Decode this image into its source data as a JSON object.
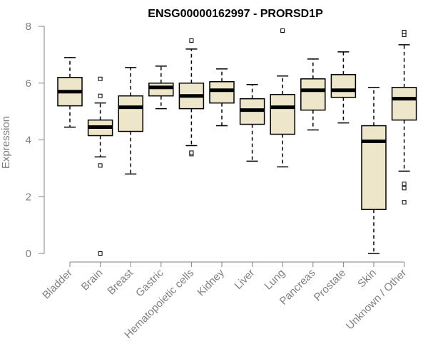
{
  "chart_data": {
    "type": "box",
    "title": "ENSG00000162997 - PRORSD1P",
    "xlabel": "",
    "ylabel": "Expression",
    "ylim": [
      0,
      8
    ],
    "yticks": [
      0,
      2,
      4,
      6,
      8
    ],
    "grid": false,
    "box_fill": "#ede6cb",
    "median_color": "#000000",
    "axis_color": "#808080",
    "categories": [
      "Bladder",
      "Brain",
      "Breast",
      "Gastric",
      "Hematopoietic cells",
      "Kidney",
      "Liver",
      "Lung",
      "Pancreas",
      "Prostate",
      "Skin",
      "Unknown / Other"
    ],
    "tick_labels": [
      "Bladder",
      "Brain",
      "Breast",
      "Gastric",
      "Hematopoietic cells",
      "Kidney",
      "Liver",
      "Lung",
      "Pancreas",
      "Prostate",
      "Skin",
      "Unknown / Other"
    ],
    "boxes": [
      {
        "whisker_low": 4.45,
        "q1": 5.2,
        "median": 5.7,
        "q3": 6.2,
        "whisker_high": 6.9,
        "outliers": []
      },
      {
        "whisker_low": 3.4,
        "q1": 4.15,
        "median": 4.45,
        "q3": 4.7,
        "whisker_high": 5.3,
        "outliers": [
          0.0,
          3.1,
          5.55,
          6.15
        ]
      },
      {
        "whisker_low": 2.8,
        "q1": 4.3,
        "median": 5.15,
        "q3": 5.55,
        "whisker_high": 6.55,
        "outliers": []
      },
      {
        "whisker_low": 5.1,
        "q1": 5.55,
        "median": 5.85,
        "q3": 6.0,
        "whisker_high": 6.6,
        "outliers": []
      },
      {
        "whisker_low": 3.8,
        "q1": 5.1,
        "median": 5.55,
        "q3": 6.0,
        "whisker_high": 7.2,
        "outliers": [
          3.5,
          3.55,
          7.5
        ]
      },
      {
        "whisker_low": 4.5,
        "q1": 5.3,
        "median": 5.75,
        "q3": 6.05,
        "whisker_high": 6.5,
        "outliers": []
      },
      {
        "whisker_low": 3.25,
        "q1": 4.55,
        "median": 5.05,
        "q3": 5.45,
        "whisker_high": 5.95,
        "outliers": []
      },
      {
        "whisker_low": 3.05,
        "q1": 4.2,
        "median": 5.15,
        "q3": 5.6,
        "whisker_high": 6.25,
        "outliers": [
          7.85
        ]
      },
      {
        "whisker_low": 4.35,
        "q1": 5.05,
        "median": 5.75,
        "q3": 6.15,
        "whisker_high": 6.85,
        "outliers": []
      },
      {
        "whisker_low": 4.6,
        "q1": 5.5,
        "median": 5.75,
        "q3": 6.3,
        "whisker_high": 7.1,
        "outliers": []
      },
      {
        "whisker_low": 0.0,
        "q1": 1.55,
        "median": 3.95,
        "q3": 4.5,
        "whisker_high": 5.85,
        "outliers": []
      },
      {
        "whisker_low": 2.9,
        "q1": 4.7,
        "median": 5.45,
        "q3": 5.85,
        "whisker_high": 7.35,
        "outliers": [
          1.8,
          2.3,
          2.45,
          7.7,
          7.8
        ]
      }
    ]
  }
}
